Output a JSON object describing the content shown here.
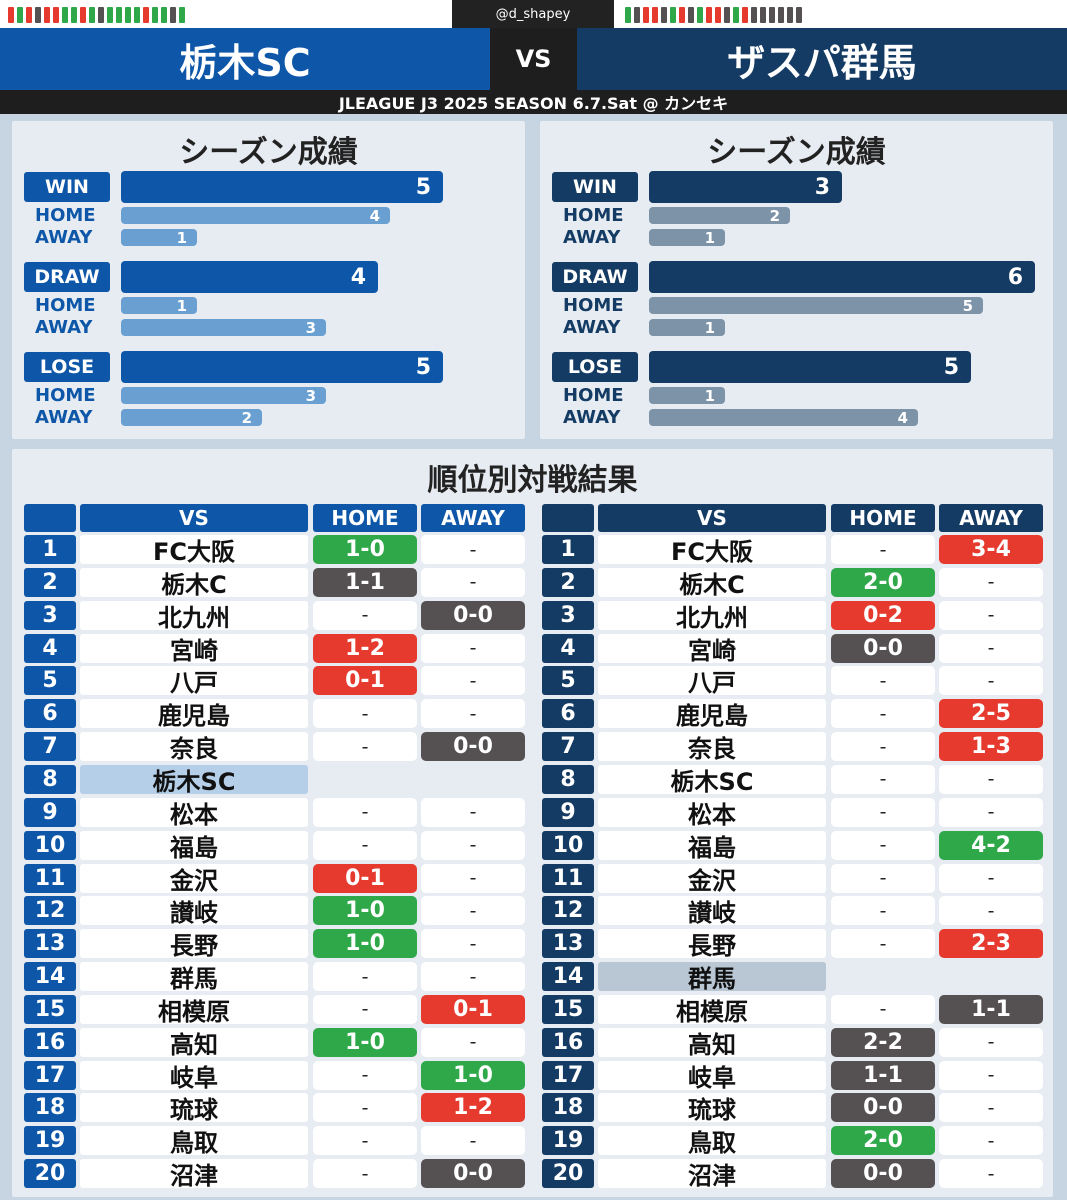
{
  "handle": "@d_shapey",
  "team_left": "栃木SC",
  "team_right": "ザスパ群馬",
  "vs": "VS",
  "subtitle": "JLEAGUE J3 2025 SEASON 6.7.Sat @ カンセキ",
  "colors": {
    "left_main": "#0d56a8",
    "left_light": "#6a9fd2",
    "right_main": "#143b63",
    "right_light": "#7d93a8",
    "win": "#2fa84a",
    "lose": "#e63a2f",
    "draw": "#555152",
    "strip_dots_left": [
      "#e63a2f",
      "#2fa84a",
      "#e63a2f",
      "#555152",
      "#e63a2f",
      "#e63a2f",
      "#2fa84a",
      "#2fa84a",
      "#e63a2f",
      "#2fa84a",
      "#555152",
      "#2fa84a",
      "#2fa84a",
      "#2fa84a",
      "#2fa84a",
      "#e63a2f",
      "#2fa84a",
      "#2fa84a",
      "#555152",
      "#2fa84a"
    ],
    "strip_dots_right": [
      "#2fa84a",
      "#555152",
      "#e63a2f",
      "#e63a2f",
      "#555152",
      "#2fa84a",
      "#e63a2f",
      "#555152",
      "#2fa84a",
      "#e63a2f",
      "#e63a2f",
      "#555152",
      "#2fa84a",
      "#e63a2f",
      "#555152",
      "#555152",
      "#555152",
      "#555152",
      "#555152",
      "#555152"
    ]
  },
  "season_left": {
    "title": "シーズン成績",
    "groups": [
      {
        "label": "WIN",
        "total": 5,
        "home_label": "HOME",
        "home": 4,
        "away_label": "AWAY",
        "away": 1
      },
      {
        "label": "DRAW",
        "total": 4,
        "home_label": "HOME",
        "home": 1,
        "away_label": "AWAY",
        "away": 3
      },
      {
        "label": "LOSE",
        "total": 5,
        "home_label": "HOME",
        "home": 3,
        "away_label": "AWAY",
        "away": 2
      }
    ]
  },
  "season_right": {
    "title": "シーズン成績",
    "groups": [
      {
        "label": "WIN",
        "total": 3,
        "home_label": "HOME",
        "home": 2,
        "away_label": "AWAY",
        "away": 1
      },
      {
        "label": "DRAW",
        "total": 6,
        "home_label": "HOME",
        "home": 5,
        "away_label": "AWAY",
        "away": 1
      },
      {
        "label": "LOSE",
        "total": 5,
        "home_label": "HOME",
        "home": 1,
        "away_label": "AWAY",
        "away": 4
      }
    ]
  },
  "ranking_title": "順位別対戦結果",
  "table_headers": {
    "vs": "VS",
    "home": "HOME",
    "away": "AWAY"
  },
  "table_left": [
    {
      "rank": "1",
      "team": "FC大阪",
      "home": "1-0",
      "home_r": "win",
      "away": "-",
      "away_r": ""
    },
    {
      "rank": "2",
      "team": "栃木C",
      "home": "1-1",
      "home_r": "draw",
      "away": "-",
      "away_r": ""
    },
    {
      "rank": "3",
      "team": "北九州",
      "home": "-",
      "home_r": "",
      "away": "0-0",
      "away_r": "draw"
    },
    {
      "rank": "4",
      "team": "宮崎",
      "home": "1-2",
      "home_r": "lose",
      "away": "-",
      "away_r": ""
    },
    {
      "rank": "5",
      "team": "八戸",
      "home": "0-1",
      "home_r": "lose",
      "away": "-",
      "away_r": ""
    },
    {
      "rank": "6",
      "team": "鹿児島",
      "home": "-",
      "home_r": "",
      "away": "-",
      "away_r": ""
    },
    {
      "rank": "7",
      "team": "奈良",
      "home": "-",
      "home_r": "",
      "away": "0-0",
      "away_r": "draw"
    },
    {
      "rank": "8",
      "team": "栃木SC",
      "home": "",
      "home_r": "blank",
      "away": "",
      "away_r": "blank",
      "self": true
    },
    {
      "rank": "9",
      "team": "松本",
      "home": "-",
      "home_r": "",
      "away": "-",
      "away_r": ""
    },
    {
      "rank": "10",
      "team": "福島",
      "home": "-",
      "home_r": "",
      "away": "-",
      "away_r": ""
    },
    {
      "rank": "11",
      "team": "金沢",
      "home": "0-1",
      "home_r": "lose",
      "away": "-",
      "away_r": ""
    },
    {
      "rank": "12",
      "team": "讃岐",
      "home": "1-0",
      "home_r": "win",
      "away": "-",
      "away_r": ""
    },
    {
      "rank": "13",
      "team": "長野",
      "home": "1-0",
      "home_r": "win",
      "away": "-",
      "away_r": ""
    },
    {
      "rank": "14",
      "team": "群馬",
      "home": "-",
      "home_r": "",
      "away": "-",
      "away_r": ""
    },
    {
      "rank": "15",
      "team": "相模原",
      "home": "-",
      "home_r": "",
      "away": "0-1",
      "away_r": "lose"
    },
    {
      "rank": "16",
      "team": "高知",
      "home": "1-0",
      "home_r": "win",
      "away": "-",
      "away_r": ""
    },
    {
      "rank": "17",
      "team": "岐阜",
      "home": "-",
      "home_r": "",
      "away": "1-0",
      "away_r": "win"
    },
    {
      "rank": "18",
      "team": "琉球",
      "home": "-",
      "home_r": "",
      "away": "1-2",
      "away_r": "lose"
    },
    {
      "rank": "19",
      "team": "鳥取",
      "home": "-",
      "home_r": "",
      "away": "-",
      "away_r": ""
    },
    {
      "rank": "20",
      "team": "沼津",
      "home": "-",
      "home_r": "",
      "away": "0-0",
      "away_r": "draw"
    }
  ],
  "table_right": [
    {
      "rank": "1",
      "team": "FC大阪",
      "home": "-",
      "home_r": "",
      "away": "3-4",
      "away_r": "lose"
    },
    {
      "rank": "2",
      "team": "栃木C",
      "home": "2-0",
      "home_r": "win",
      "away": "-",
      "away_r": ""
    },
    {
      "rank": "3",
      "team": "北九州",
      "home": "0-2",
      "home_r": "lose",
      "away": "-",
      "away_r": ""
    },
    {
      "rank": "4",
      "team": "宮崎",
      "home": "0-0",
      "home_r": "draw",
      "away": "-",
      "away_r": ""
    },
    {
      "rank": "5",
      "team": "八戸",
      "home": "-",
      "home_r": "",
      "away": "-",
      "away_r": ""
    },
    {
      "rank": "6",
      "team": "鹿児島",
      "home": "-",
      "home_r": "",
      "away": "2-5",
      "away_r": "lose"
    },
    {
      "rank": "7",
      "team": "奈良",
      "home": "-",
      "home_r": "",
      "away": "1-3",
      "away_r": "lose"
    },
    {
      "rank": "8",
      "team": "栃木SC",
      "home": "-",
      "home_r": "",
      "away": "-",
      "away_r": ""
    },
    {
      "rank": "9",
      "team": "松本",
      "home": "-",
      "home_r": "",
      "away": "-",
      "away_r": ""
    },
    {
      "rank": "10",
      "team": "福島",
      "home": "-",
      "home_r": "",
      "away": "4-2",
      "away_r": "win"
    },
    {
      "rank": "11",
      "team": "金沢",
      "home": "-",
      "home_r": "",
      "away": "-",
      "away_r": ""
    },
    {
      "rank": "12",
      "team": "讃岐",
      "home": "-",
      "home_r": "",
      "away": "-",
      "away_r": ""
    },
    {
      "rank": "13",
      "team": "長野",
      "home": "-",
      "home_r": "",
      "away": "2-3",
      "away_r": "lose"
    },
    {
      "rank": "14",
      "team": "群馬",
      "home": "",
      "home_r": "blank",
      "away": "",
      "away_r": "blank",
      "self": true
    },
    {
      "rank": "15",
      "team": "相模原",
      "home": "-",
      "home_r": "",
      "away": "1-1",
      "away_r": "draw"
    },
    {
      "rank": "16",
      "team": "高知",
      "home": "2-2",
      "home_r": "draw",
      "away": "-",
      "away_r": ""
    },
    {
      "rank": "17",
      "team": "岐阜",
      "home": "1-1",
      "home_r": "draw",
      "away": "-",
      "away_r": ""
    },
    {
      "rank": "18",
      "team": "琉球",
      "home": "0-0",
      "home_r": "draw",
      "away": "-",
      "away_r": ""
    },
    {
      "rank": "19",
      "team": "鳥取",
      "home": "2-0",
      "home_r": "win",
      "away": "-",
      "away_r": ""
    },
    {
      "rank": "20",
      "team": "沼津",
      "home": "0-0",
      "home_r": "draw",
      "away": "-",
      "away_r": ""
    }
  ]
}
